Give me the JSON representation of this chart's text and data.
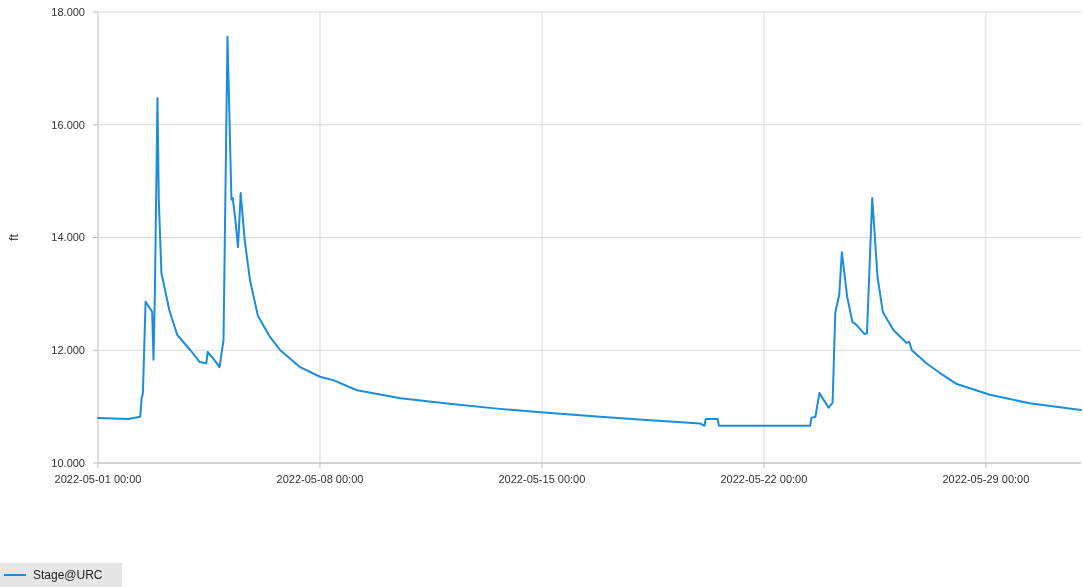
{
  "chart_data": {
    "type": "line",
    "ylabel": "ft",
    "x": [
      "2022-05-01T00:00",
      "2022-05-01T23:00",
      "2022-05-02T08:00",
      "2022-05-02T09:00",
      "2022-05-02T10:00",
      "2022-05-02T12:00",
      "2022-05-02T17:00",
      "2022-05-02T18:00",
      "2022-05-02T19:00",
      "2022-05-02T21:00",
      "2022-05-02T22:00",
      "2022-05-03T00:00",
      "2022-05-03T06:00",
      "2022-05-03T12:00",
      "2022-05-03T22:00",
      "2022-05-04T05:00",
      "2022-05-04T10:00",
      "2022-05-04T11:00",
      "2022-05-04T16:00",
      "2022-05-04T20:00",
      "2022-05-04T23:00",
      "2022-05-05T02:00",
      "2022-05-05T05:00",
      "2022-05-05T06:00",
      "2022-05-05T08:00",
      "2022-05-05T10:00",
      "2022-05-05T12:00",
      "2022-05-05T15:00",
      "2022-05-05T19:00",
      "2022-05-06T01:00",
      "2022-05-06T10:00",
      "2022-05-06T18:00",
      "2022-05-07T09:00",
      "2022-05-08T00:00",
      "2022-05-08T10:00",
      "2022-05-09T04:00",
      "2022-05-10T13:00",
      "2022-05-12T02:00",
      "2022-05-13T16:00",
      "2022-05-14T23:00",
      "2022-05-16T20:00",
      "2022-05-18T10:00",
      "2022-05-20T00:00",
      "2022-05-20T03:00",
      "2022-05-20T04:00",
      "2022-05-20T13:00",
      "2022-05-20T14:00",
      "2022-05-23T11:00",
      "2022-05-23T12:00",
      "2022-05-23T15:00",
      "2022-05-23T18:00",
      "2022-05-24T01:00",
      "2022-05-24T04:00",
      "2022-05-24T06:00",
      "2022-05-24T09:00",
      "2022-05-24T11:00",
      "2022-05-24T15:00",
      "2022-05-24T19:00",
      "2022-05-24T22:00",
      "2022-05-25T04:00",
      "2022-05-25T06:00",
      "2022-05-25T10:00",
      "2022-05-25T14:00",
      "2022-05-25T18:00",
      "2022-05-26T02:00",
      "2022-05-26T12:00",
      "2022-05-26T14:00",
      "2022-05-26T16:00",
      "2022-05-27T03:00",
      "2022-05-27T13:00",
      "2022-05-28T02:00",
      "2022-05-29T03:00",
      "2022-05-30T09:00",
      "2022-06-01T00:00"
    ],
    "series": [
      {
        "name": "Stage@URC",
        "color": "#1b8ddb",
        "values": [
          10.8,
          10.78,
          10.82,
          11.15,
          11.24,
          12.86,
          12.68,
          11.83,
          12.94,
          16.47,
          14.66,
          13.37,
          12.71,
          12.27,
          12.0,
          11.79,
          11.77,
          11.97,
          11.83,
          11.7,
          12.18,
          17.56,
          14.67,
          14.7,
          14.3,
          13.83,
          14.79,
          13.96,
          13.25,
          12.61,
          12.24,
          12.0,
          11.7,
          11.53,
          11.47,
          11.29,
          11.15,
          11.05,
          10.96,
          10.9,
          10.82,
          10.76,
          10.7,
          10.66,
          10.78,
          10.78,
          10.66,
          10.66,
          10.8,
          10.82,
          11.24,
          10.98,
          11.07,
          12.66,
          12.98,
          13.74,
          12.95,
          12.5,
          12.45,
          12.29,
          12.3,
          14.7,
          13.3,
          12.68,
          12.36,
          12.13,
          12.15,
          12.0,
          11.77,
          11.6,
          11.4,
          11.21,
          11.06,
          10.94
        ]
      }
    ],
    "xlim": [
      "2022-05-01",
      "2022-06-01"
    ],
    "xticks": [
      {
        "value": "2022-05-01",
        "label": "2022-05-01 00:00"
      },
      {
        "value": "2022-05-08",
        "label": "2022-05-08 00:00"
      },
      {
        "value": "2022-05-15",
        "label": "2022-05-15 00:00"
      },
      {
        "value": "2022-05-22",
        "label": "2022-05-22 00:00"
      },
      {
        "value": "2022-05-29",
        "label": "2022-05-29 00:00"
      }
    ],
    "ylim": [
      10,
      18
    ],
    "yticks": [
      {
        "value": 10,
        "label": "10.000"
      },
      {
        "value": 12,
        "label": "12.000"
      },
      {
        "value": 14,
        "label": "14.000"
      },
      {
        "value": 16,
        "label": "16.000"
      },
      {
        "value": 18,
        "label": "18.000"
      }
    ],
    "grid": true,
    "legend": "bottom left"
  }
}
